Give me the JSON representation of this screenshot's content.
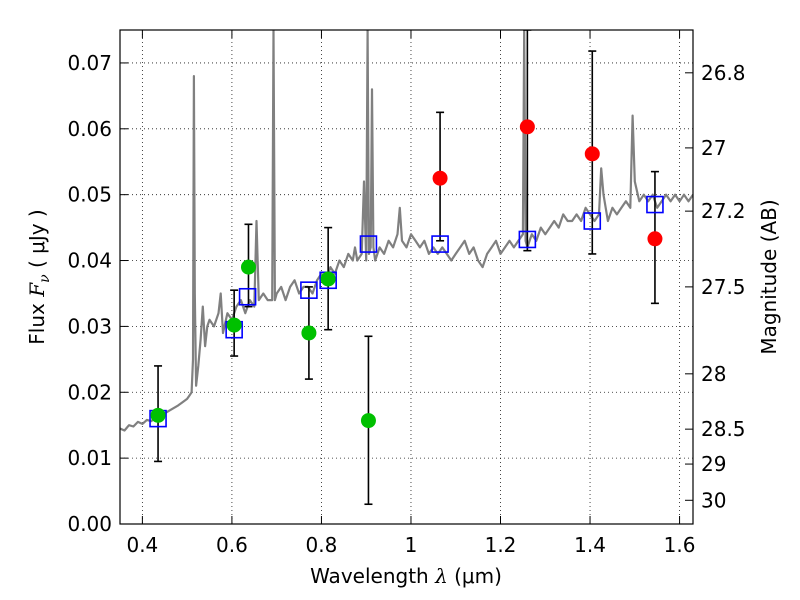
{
  "chart_data": {
    "type": "scatter",
    "xlabel_pre": "Wavelength  ",
    "xlabel_lambda": "λ",
    "xlabel_unit": " (μm)",
    "ylabel_pre": "Flux  ",
    "ylabel_var": "F",
    "ylabel_sub": "ν",
    "ylabel_unit": "  ( μJy )",
    "y2label": "Magnitude (AB)",
    "xlim": [
      0.35,
      1.63
    ],
    "ylim": [
      0.0,
      0.075
    ],
    "grid": true,
    "x_ticks": [
      {
        "value": 0.4,
        "label": "0.4"
      },
      {
        "value": 0.6,
        "label": "0.6"
      },
      {
        "value": 0.8,
        "label": "0.8"
      },
      {
        "value": 1.0,
        "label": "1"
      },
      {
        "value": 1.2,
        "label": "1.2"
      },
      {
        "value": 1.4,
        "label": "1.4"
      },
      {
        "value": 1.6,
        "label": "1.6"
      }
    ],
    "y_ticks": [
      {
        "value": 0.0,
        "label": "0.00"
      },
      {
        "value": 0.01,
        "label": "0.01"
      },
      {
        "value": 0.02,
        "label": "0.02"
      },
      {
        "value": 0.03,
        "label": "0.03"
      },
      {
        "value": 0.04,
        "label": "0.04"
      },
      {
        "value": 0.05,
        "label": "0.05"
      },
      {
        "value": 0.06,
        "label": "0.06"
      },
      {
        "value": 0.07,
        "label": "0.07"
      }
    ],
    "y2_ticks": [
      {
        "flux": 0.0685,
        "label": "26.8"
      },
      {
        "flux": 0.0571,
        "label": "27"
      },
      {
        "flux": 0.0475,
        "label": "27.2"
      },
      {
        "flux": 0.036,
        "label": "27.5"
      },
      {
        "flux": 0.0228,
        "label": "28"
      },
      {
        "flux": 0.0144,
        "label": "28.5"
      },
      {
        "flux": 0.0091,
        "label": "29"
      },
      {
        "flux": 0.0036,
        "label": "30"
      }
    ],
    "spectrum": {
      "color": "#808080",
      "points": [
        [
          0.35,
          0.0145
        ],
        [
          0.36,
          0.0142
        ],
        [
          0.37,
          0.015
        ],
        [
          0.38,
          0.0148
        ],
        [
          0.39,
          0.0155
        ],
        [
          0.4,
          0.0152
        ],
        [
          0.41,
          0.0158
        ],
        [
          0.42,
          0.0156
        ],
        [
          0.43,
          0.0163
        ],
        [
          0.44,
          0.0165
        ],
        [
          0.45,
          0.0168
        ],
        [
          0.46,
          0.0172
        ],
        [
          0.47,
          0.0176
        ],
        [
          0.48,
          0.018
        ],
        [
          0.49,
          0.0185
        ],
        [
          0.5,
          0.019
        ],
        [
          0.505,
          0.0195
        ],
        [
          0.51,
          0.02
        ],
        [
          0.513,
          0.025
        ],
        [
          0.515,
          0.068
        ],
        [
          0.517,
          0.035
        ],
        [
          0.52,
          0.021
        ],
        [
          0.525,
          0.024
        ],
        [
          0.53,
          0.028
        ],
        [
          0.535,
          0.033
        ],
        [
          0.54,
          0.027
        ],
        [
          0.545,
          0.03
        ],
        [
          0.55,
          0.031
        ],
        [
          0.56,
          0.03
        ],
        [
          0.57,
          0.032
        ],
        [
          0.575,
          0.035
        ],
        [
          0.58,
          0.029
        ],
        [
          0.59,
          0.032
        ],
        [
          0.6,
          0.031
        ],
        [
          0.61,
          0.033
        ],
        [
          0.62,
          0.034
        ],
        [
          0.63,
          0.032
        ],
        [
          0.64,
          0.034
        ],
        [
          0.65,
          0.033
        ],
        [
          0.655,
          0.046
        ],
        [
          0.66,
          0.034
        ],
        [
          0.67,
          0.035
        ],
        [
          0.68,
          0.034
        ],
        [
          0.69,
          0.034
        ],
        [
          0.693,
          0.075
        ],
        [
          0.696,
          0.034
        ],
        [
          0.7,
          0.035
        ],
        [
          0.71,
          0.036
        ],
        [
          0.72,
          0.034
        ],
        [
          0.73,
          0.036
        ],
        [
          0.74,
          0.037
        ],
        [
          0.75,
          0.035
        ],
        [
          0.76,
          0.036
        ],
        [
          0.77,
          0.036
        ],
        [
          0.78,
          0.035
        ],
        [
          0.79,
          0.037
        ],
        [
          0.8,
          0.038
        ],
        [
          0.81,
          0.037
        ],
        [
          0.82,
          0.039
        ],
        [
          0.83,
          0.038
        ],
        [
          0.84,
          0.04
        ],
        [
          0.85,
          0.039
        ],
        [
          0.86,
          0.041
        ],
        [
          0.87,
          0.04
        ],
        [
          0.875,
          0.042
        ],
        [
          0.88,
          0.04
        ],
        [
          0.89,
          0.041
        ],
        [
          0.895,
          0.052
        ],
        [
          0.9,
          0.04
        ],
        [
          0.903,
          0.075
        ],
        [
          0.906,
          0.041
        ],
        [
          0.91,
          0.042
        ],
        [
          0.913,
          0.066
        ],
        [
          0.916,
          0.042
        ],
        [
          0.92,
          0.04
        ],
        [
          0.93,
          0.042
        ],
        [
          0.94,
          0.041
        ],
        [
          0.95,
          0.043
        ],
        [
          0.96,
          0.042
        ],
        [
          0.97,
          0.044
        ],
        [
          0.975,
          0.048
        ],
        [
          0.98,
          0.043
        ],
        [
          0.99,
          0.042
        ],
        [
          1.0,
          0.044
        ],
        [
          1.01,
          0.043
        ],
        [
          1.02,
          0.042
        ],
        [
          1.03,
          0.043
        ],
        [
          1.04,
          0.041
        ],
        [
          1.05,
          0.042
        ],
        [
          1.06,
          0.041
        ],
        [
          1.07,
          0.042
        ],
        [
          1.08,
          0.041
        ],
        [
          1.09,
          0.04
        ],
        [
          1.1,
          0.041
        ],
        [
          1.11,
          0.042
        ],
        [
          1.12,
          0.043
        ],
        [
          1.13,
          0.041
        ],
        [
          1.14,
          0.042
        ],
        [
          1.15,
          0.04
        ],
        [
          1.16,
          0.039
        ],
        [
          1.17,
          0.041
        ],
        [
          1.18,
          0.042
        ],
        [
          1.19,
          0.043
        ],
        [
          1.2,
          0.041
        ],
        [
          1.21,
          0.042
        ],
        [
          1.22,
          0.043
        ],
        [
          1.23,
          0.042
        ],
        [
          1.24,
          0.043
        ],
        [
          1.25,
          0.044
        ],
        [
          1.253,
          0.075
        ],
        [
          1.256,
          0.043
        ],
        [
          1.26,
          0.042
        ],
        [
          1.27,
          0.044
        ],
        [
          1.28,
          0.043
        ],
        [
          1.29,
          0.045
        ],
        [
          1.3,
          0.044
        ],
        [
          1.31,
          0.045
        ],
        [
          1.32,
          0.046
        ],
        [
          1.33,
          0.045
        ],
        [
          1.34,
          0.047
        ],
        [
          1.35,
          0.046
        ],
        [
          1.36,
          0.046
        ],
        [
          1.37,
          0.047
        ],
        [
          1.38,
          0.046
        ],
        [
          1.39,
          0.048
        ],
        [
          1.4,
          0.047
        ],
        [
          1.41,
          0.046
        ],
        [
          1.42,
          0.047
        ],
        [
          1.425,
          0.054
        ],
        [
          1.43,
          0.05
        ],
        [
          1.44,
          0.046
        ],
        [
          1.45,
          0.048
        ],
        [
          1.46,
          0.047
        ],
        [
          1.47,
          0.048
        ],
        [
          1.48,
          0.049
        ],
        [
          1.49,
          0.048
        ],
        [
          1.495,
          0.062
        ],
        [
          1.5,
          0.052
        ],
        [
          1.51,
          0.049
        ],
        [
          1.52,
          0.05
        ],
        [
          1.53,
          0.049
        ],
        [
          1.54,
          0.05
        ],
        [
          1.55,
          0.048
        ],
        [
          1.56,
          0.049
        ],
        [
          1.57,
          0.05
        ],
        [
          1.58,
          0.049
        ],
        [
          1.59,
          0.05
        ],
        [
          1.6,
          0.049
        ],
        [
          1.61,
          0.05
        ],
        [
          1.62,
          0.049
        ],
        [
          1.63,
          0.05
        ]
      ]
    },
    "model_points": {
      "color": "#0000ff",
      "points": [
        [
          0.435,
          0.016
        ],
        [
          0.605,
          0.0295
        ],
        [
          0.635,
          0.0345
        ],
        [
          0.772,
          0.0355
        ],
        [
          0.815,
          0.037
        ],
        [
          0.905,
          0.0425
        ],
        [
          1.065,
          0.0425
        ],
        [
          1.26,
          0.0432
        ],
        [
          1.405,
          0.046
        ],
        [
          1.545,
          0.0485
        ]
      ]
    },
    "detections": [
      {
        "color": "#00c000",
        "x": 0.435,
        "y": 0.0165,
        "err_low": 0.0095,
        "err_high": 0.024
      },
      {
        "color": "#00c000",
        "x": 0.605,
        "y": 0.0302,
        "err_low": 0.0255,
        "err_high": 0.0355
      },
      {
        "color": "#00c000",
        "x": 0.637,
        "y": 0.039,
        "err_low": 0.033,
        "err_high": 0.0455
      },
      {
        "color": "#00c000",
        "x": 0.772,
        "y": 0.029,
        "err_low": 0.022,
        "err_high": 0.036
      },
      {
        "color": "#00c000",
        "x": 0.815,
        "y": 0.0372,
        "err_low": 0.0295,
        "err_high": 0.045
      },
      {
        "color": "#00c000",
        "x": 0.905,
        "y": 0.0157,
        "err_low": 0.003,
        "err_high": 0.0285
      },
      {
        "color": "#ff0000",
        "x": 1.065,
        "y": 0.0525,
        "err_low": 0.043,
        "err_high": 0.0625
      },
      {
        "color": "#ff0000",
        "x": 1.26,
        "y": 0.0603,
        "err_low": 0.0415,
        "err_high": 0.075
      },
      {
        "color": "#ff0000",
        "x": 1.405,
        "y": 0.0562,
        "err_low": 0.041,
        "err_high": 0.0718
      },
      {
        "color": "#ff0000",
        "x": 1.545,
        "y": 0.0433,
        "err_low": 0.0335,
        "err_high": 0.0535
      }
    ]
  }
}
